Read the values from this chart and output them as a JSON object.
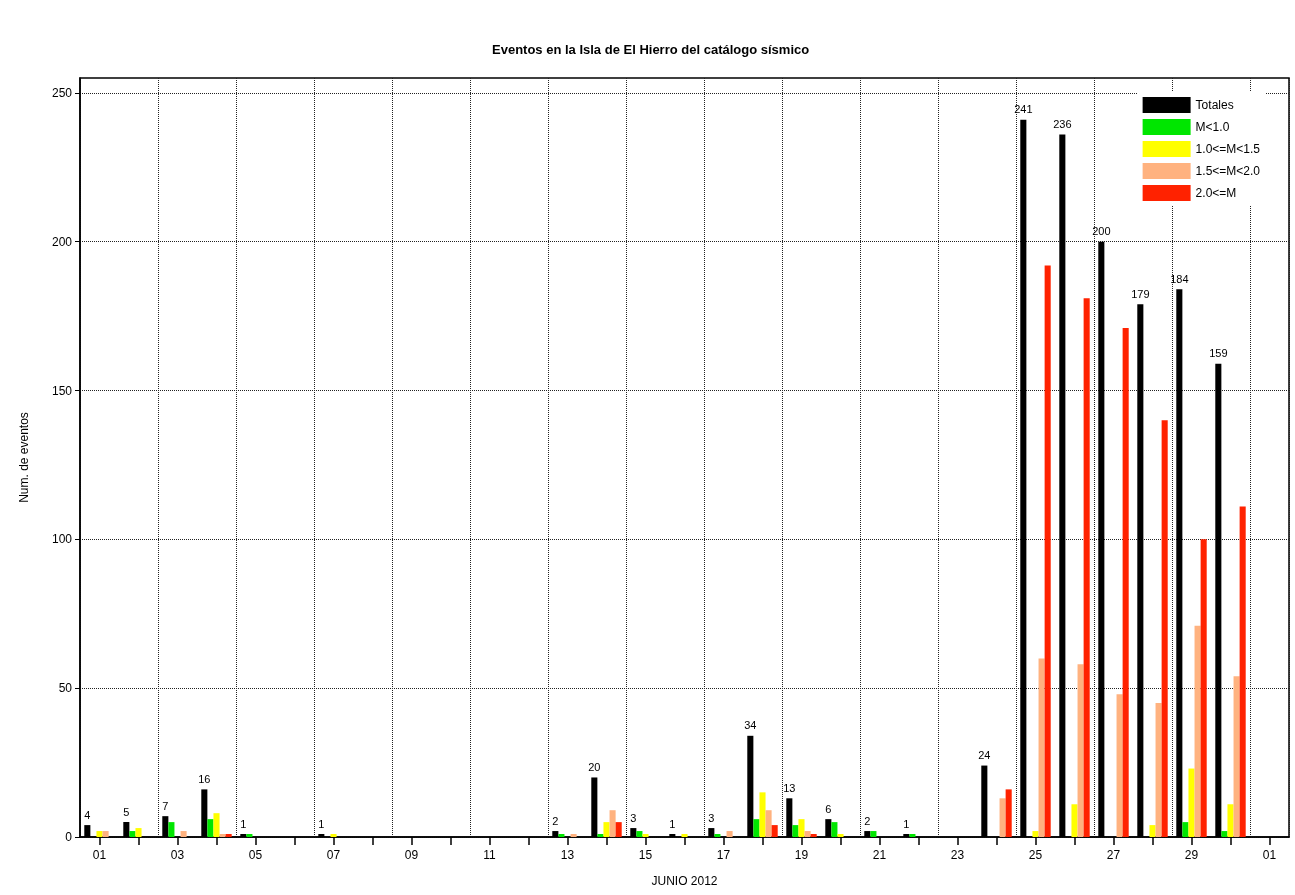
{
  "chart_data": {
    "type": "bar",
    "title": "Eventos en la Isla de El Hierro del catálogo sísmico",
    "xlabel": "JUNIO 2012",
    "ylabel": "Num. de eventos",
    "categories": [
      "01",
      null,
      "03",
      null,
      "05",
      null,
      "07",
      null,
      "09",
      null,
      "11",
      null,
      "13",
      null,
      "15",
      null,
      "17",
      null,
      "19",
      null,
      "21",
      null,
      "23",
      null,
      "25",
      null,
      "27",
      null,
      "29",
      null,
      "01"
    ],
    "series": [
      {
        "name": "Totales",
        "color": "#000000",
        "values": [
          4,
          5,
          7,
          16,
          1,
          0,
          1,
          0,
          0,
          0,
          0,
          0,
          2,
          20,
          3,
          1,
          3,
          34,
          13,
          6,
          2,
          1,
          0,
          24,
          241,
          236,
          200,
          179,
          184,
          159,
          null
        ],
        "value_labels": [
          "4",
          "5",
          "7",
          "16",
          "1",
          null,
          "1",
          null,
          null,
          null,
          null,
          null,
          "2",
          "20",
          "3",
          "1",
          "3",
          "34",
          "13",
          "6",
          "2",
          "1",
          null,
          "24",
          "241",
          "236",
          "200",
          "179",
          "184",
          "159",
          null
        ]
      },
      {
        "name": "M<1.0",
        "color": "#00e600",
        "values": [
          0,
          2,
          5,
          6,
          1,
          0,
          0,
          0,
          0,
          0,
          0,
          0,
          1,
          1,
          2,
          0,
          1,
          6,
          4,
          5,
          2,
          1,
          0,
          0,
          0,
          0,
          0,
          0,
          5,
          2,
          null
        ]
      },
      {
        "name": "1.0<=M<1.5",
        "color": "#ffff00",
        "values": [
          2,
          3,
          0,
          8,
          0,
          0,
          1,
          0,
          0,
          0,
          0,
          0,
          0,
          5,
          1,
          1,
          0,
          15,
          6,
          1,
          0,
          0,
          0,
          0,
          2,
          11,
          0,
          4,
          23,
          11,
          null
        ]
      },
      {
        "name": "1.5<=M<2.0",
        "color": "#ffb27f",
        "values": [
          2,
          0,
          2,
          1,
          0,
          0,
          0,
          0,
          0,
          0,
          0,
          0,
          1,
          9,
          0,
          0,
          2,
          9,
          2,
          0,
          0,
          0,
          0,
          13,
          60,
          58,
          48,
          45,
          71,
          54,
          null
        ]
      },
      {
        "name": "2.0<=M",
        "color": "#ff2200",
        "values": [
          0,
          0,
          0,
          1,
          0,
          0,
          0,
          0,
          0,
          0,
          0,
          0,
          0,
          5,
          0,
          0,
          0,
          4,
          1,
          0,
          0,
          0,
          0,
          16,
          192,
          181,
          171,
          140,
          100,
          111,
          null
        ]
      }
    ],
    "ylim": [
      0,
      255
    ],
    "yticks": [
      0,
      50,
      100,
      150,
      200,
      250
    ],
    "grid": true,
    "legend": "top right"
  }
}
